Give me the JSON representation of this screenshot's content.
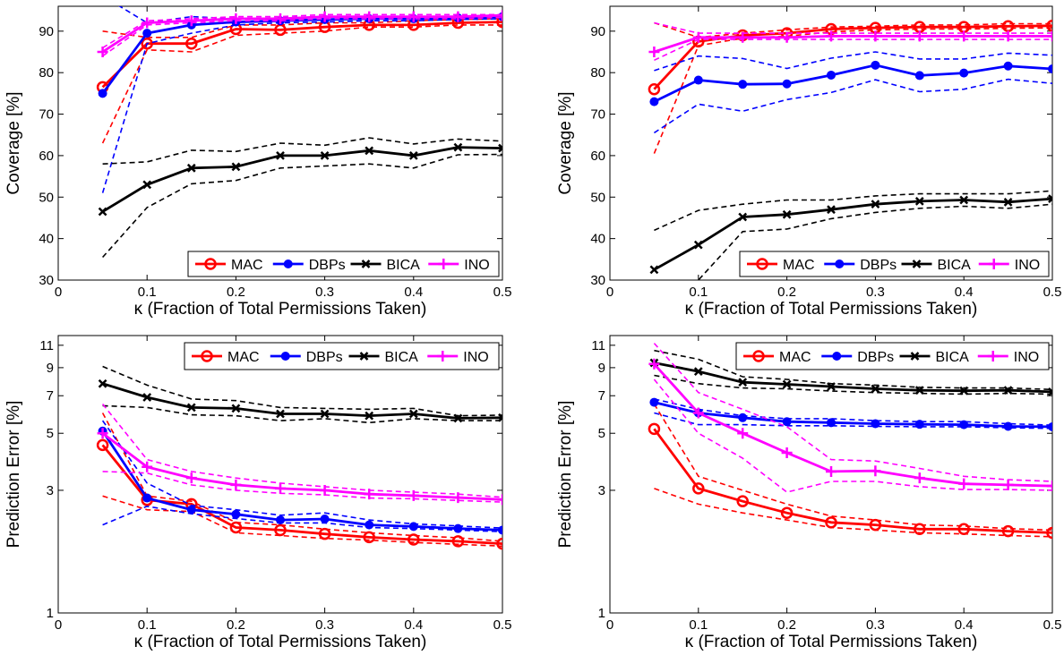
{
  "colors": {
    "MAC": "#ff0000",
    "DBPs": "#0000ff",
    "BICA": "#000000",
    "INO": "#ff00ff"
  },
  "legend_labels": [
    "MAC",
    "DBPs",
    "BICA",
    "INO"
  ],
  "chart_data": [
    {
      "type": "line",
      "xlabel": "κ (Fraction of Total Permissions Taken)",
      "ylabel": "Coverage [%]",
      "xlim": [
        0,
        0.5
      ],
      "ylim": [
        30,
        96
      ],
      "yscale": "linear",
      "xticks": [
        0,
        0.1,
        0.2,
        0.3,
        0.4,
        0.5
      ],
      "xtick_labels": [
        "0",
        "0.1",
        "0.2",
        "0.3",
        "0.4",
        "0.5"
      ],
      "yticks": [
        30,
        40,
        50,
        60,
        70,
        80,
        90
      ],
      "ytick_labels": [
        "30",
        "40",
        "50",
        "60",
        "70",
        "80",
        "90"
      ],
      "legend": "bottom-right",
      "x": [
        0.05,
        0.1,
        0.15,
        0.2,
        0.25,
        0.3,
        0.35,
        0.4,
        0.45,
        0.5
      ],
      "series": [
        {
          "name": "MAC",
          "marker": "circle",
          "values": [
            76.5,
            87,
            87,
            90.5,
            90.3,
            91,
            91.5,
            91.5,
            92,
            92.2
          ],
          "upper": [
            90,
            88.5,
            88.5,
            91.5,
            91.5,
            92,
            92,
            92.5,
            92.8,
            93
          ],
          "lower": [
            63,
            85.5,
            85,
            89,
            89.5,
            90,
            91,
            91,
            91.5,
            91.5
          ]
        },
        {
          "name": "DBPs",
          "marker": "dot",
          "values": [
            75,
            89.5,
            91.5,
            92.2,
            92.5,
            92.8,
            93,
            93,
            93.2,
            93.5
          ],
          "upper": [
            98.5,
            92,
            93.5,
            93,
            93.2,
            93.5,
            93.5,
            93.5,
            93.5,
            94
          ],
          "lower": [
            51,
            87,
            89.5,
            91.5,
            92,
            92.2,
            92.5,
            92.5,
            92.8,
            93
          ]
        },
        {
          "name": "BICA",
          "marker": "x",
          "values": [
            46.5,
            53,
            57,
            57.3,
            60,
            60,
            61.2,
            60,
            62,
            61.8
          ],
          "upper": [
            58,
            58.5,
            61.3,
            61,
            63,
            62.5,
            64.3,
            62.8,
            64,
            63.5
          ],
          "lower": [
            35.5,
            47.5,
            53.2,
            54,
            57,
            57.5,
            58,
            57,
            60.2,
            60.3
          ]
        },
        {
          "name": "INO",
          "marker": "plus",
          "values": [
            85,
            92,
            92.5,
            93,
            93,
            93.5,
            93.5,
            93.5,
            93.5,
            93.8
          ],
          "upper": [
            86,
            92.5,
            93,
            93.5,
            93.5,
            94,
            94,
            94,
            94,
            94
          ],
          "lower": [
            84,
            91.5,
            92,
            92.5,
            92.5,
            93,
            93,
            93,
            93,
            93.3
          ]
        }
      ]
    },
    {
      "type": "line",
      "xlabel": "κ (Fraction of Total Permissions Taken)",
      "ylabel": "Coverage [%]",
      "xlim": [
        0,
        0.5
      ],
      "ylim": [
        30,
        96
      ],
      "yscale": "linear",
      "xticks": [
        0,
        0.1,
        0.2,
        0.3,
        0.4,
        0.5
      ],
      "xtick_labels": [
        "0",
        "0.1",
        "0.2",
        "0.3",
        "0.4",
        "0.5"
      ],
      "yticks": [
        30,
        40,
        50,
        60,
        70,
        80,
        90
      ],
      "ytick_labels": [
        "30",
        "40",
        "50",
        "60",
        "70",
        "80",
        "90"
      ],
      "legend": "bottom-right",
      "x": [
        0.05,
        0.1,
        0.15,
        0.2,
        0.25,
        0.3,
        0.35,
        0.4,
        0.45,
        0.5
      ],
      "series": [
        {
          "name": "MAC",
          "marker": "circle",
          "values": [
            76,
            87.5,
            89,
            89.5,
            90.5,
            90.8,
            91,
            91,
            91.2,
            91.3
          ],
          "upper": [
            92,
            88.5,
            89.5,
            90.3,
            91,
            91.2,
            91.5,
            91.5,
            91.8,
            91.8
          ],
          "lower": [
            60.5,
            86.5,
            88.3,
            88.8,
            89.8,
            90.3,
            90.5,
            90.5,
            90.7,
            90.8
          ]
        },
        {
          "name": "DBPs",
          "marker": "dot",
          "values": [
            73,
            78.2,
            77.2,
            77.3,
            79.4,
            81.8,
            79.3,
            79.9,
            81.6,
            80.9
          ],
          "upper": [
            80.5,
            84,
            83.4,
            81,
            83.5,
            85,
            83.3,
            83.3,
            84.7,
            84.2
          ],
          "lower": [
            65.5,
            72.4,
            70.7,
            73.5,
            75.2,
            78.3,
            75.4,
            76,
            78.4,
            77.4
          ]
        },
        {
          "name": "BICA",
          "marker": "x",
          "values": [
            32.5,
            38.5,
            45.2,
            45.8,
            47,
            48.3,
            49,
            49.3,
            48.8,
            49.6
          ],
          "upper": [
            42,
            46.8,
            48.3,
            49.3,
            49.3,
            50.3,
            50.8,
            50.8,
            50.8,
            51.5
          ],
          "lower": [
            23,
            30,
            41.7,
            42.3,
            44.8,
            46.3,
            47.3,
            47.8,
            47.3,
            48.3
          ]
        },
        {
          "name": "INO",
          "marker": "plus",
          "values": [
            85,
            88.5,
            88.5,
            88.5,
            88.8,
            88.8,
            88.8,
            88.8,
            88.8,
            88.8
          ],
          "upper": [
            92,
            89.5,
            89.5,
            89.5,
            89.5,
            89.5,
            89.5,
            89.5,
            89.5,
            89.5
          ],
          "lower": [
            83,
            88,
            88,
            88,
            88,
            88,
            88,
            88,
            88,
            88
          ]
        }
      ]
    },
    {
      "type": "line",
      "xlabel": "κ (Fraction of Total Permissions Taken)",
      "ylabel": "Prediction Error [%]",
      "xlim": [
        0,
        0.5
      ],
      "ylim": [
        1,
        12
      ],
      "yscale": "log",
      "xticks": [
        0,
        0.1,
        0.2,
        0.3,
        0.4,
        0.5
      ],
      "xtick_labels": [
        "0",
        "0.1",
        "0.2",
        "0.3",
        "0.4",
        "0.5"
      ],
      "yticks": [
        1,
        3,
        5,
        7,
        9,
        11
      ],
      "ytick_labels": [
        "1",
        "3",
        "5",
        "7",
        "9",
        "11"
      ],
      "legend": "top-right",
      "x": [
        0.05,
        0.1,
        0.15,
        0.2,
        0.25,
        0.3,
        0.35,
        0.4,
        0.45,
        0.5
      ],
      "series": [
        {
          "name": "MAC",
          "marker": "circle",
          "values": [
            4.5,
            2.75,
            2.65,
            2.15,
            2.1,
            2.03,
            1.97,
            1.93,
            1.9,
            1.86
          ],
          "upper": [
            6,
            2.85,
            2.72,
            2.25,
            2.2,
            2.12,
            2.05,
            2,
            1.96,
            1.9
          ],
          "lower": [
            2.85,
            2.52,
            2.48,
            2.05,
            2,
            1.95,
            1.92,
            1.88,
            1.85,
            1.82
          ]
        },
        {
          "name": "DBPs",
          "marker": "dot",
          "values": [
            5.1,
            2.8,
            2.52,
            2.42,
            2.3,
            2.32,
            2.2,
            2.17,
            2.13,
            2.1
          ],
          "upper": [
            5.6,
            3.2,
            2.62,
            2.52,
            2.4,
            2.45,
            2.3,
            2.22,
            2.18,
            2.14
          ],
          "lower": [
            2.2,
            2.6,
            2.43,
            2.33,
            2.24,
            2.24,
            2.15,
            2.13,
            2.1,
            2.07
          ]
        },
        {
          "name": "BICA",
          "marker": "x",
          "values": [
            7.8,
            6.9,
            6.3,
            6.25,
            5.95,
            5.95,
            5.85,
            5.95,
            5.72,
            5.75
          ],
          "upper": [
            9.1,
            7.7,
            6.8,
            6.7,
            6.3,
            6.25,
            6.2,
            6.25,
            5.85,
            5.88
          ],
          "lower": [
            6.4,
            6.3,
            5.9,
            5.85,
            5.6,
            5.7,
            5.5,
            5.7,
            5.6,
            5.6
          ]
        },
        {
          "name": "INO",
          "marker": "plus",
          "values": [
            5,
            3.7,
            3.35,
            3.15,
            3.05,
            3,
            2.9,
            2.86,
            2.81,
            2.76
          ],
          "upper": [
            6.5,
            3.95,
            3.55,
            3.35,
            3.2,
            3.1,
            3,
            2.95,
            2.9,
            2.82
          ],
          "lower": [
            3.55,
            3.5,
            3.15,
            3,
            2.92,
            2.88,
            2.8,
            2.78,
            2.74,
            2.7
          ]
        }
      ]
    },
    {
      "type": "line",
      "xlabel": "κ (Fraction of Total Permissions Taken)",
      "ylabel": "Prediction Error [%]",
      "xlim": [
        0,
        0.5
      ],
      "ylim": [
        1,
        12
      ],
      "yscale": "log",
      "xticks": [
        0,
        0.1,
        0.2,
        0.3,
        0.4,
        0.5
      ],
      "xtick_labels": [
        "0",
        "0.1",
        "0.2",
        "0.3",
        "0.4",
        "0.5"
      ],
      "yticks": [
        1,
        3,
        5,
        7,
        9,
        11
      ],
      "ytick_labels": [
        "1",
        "3",
        "5",
        "7",
        "9",
        "11"
      ],
      "legend": "top-right",
      "x": [
        0.05,
        0.1,
        0.15,
        0.2,
        0.25,
        0.3,
        0.35,
        0.4,
        0.45,
        0.5
      ],
      "series": [
        {
          "name": "MAC",
          "marker": "circle",
          "values": [
            5.2,
            3.05,
            2.72,
            2.45,
            2.25,
            2.2,
            2.12,
            2.12,
            2.08,
            2.05
          ],
          "upper": [
            6.5,
            3.4,
            3,
            2.65,
            2.38,
            2.3,
            2.2,
            2.18,
            2.13,
            2.1
          ],
          "lower": [
            3.05,
            2.65,
            2.45,
            2.3,
            2.15,
            2.1,
            2.05,
            2.03,
            2.0,
            1.98
          ]
        },
        {
          "name": "DBPs",
          "marker": "dot",
          "values": [
            6.6,
            6,
            5.75,
            5.55,
            5.5,
            5.45,
            5.42,
            5.4,
            5.32,
            5.3
          ],
          "upper": [
            6.8,
            6.2,
            5.85,
            5.7,
            5.7,
            5.6,
            5.55,
            5.55,
            5.45,
            5.38
          ],
          "lower": [
            6,
            5.4,
            5.4,
            5.35,
            5.35,
            5.32,
            5.3,
            5.3,
            5.25,
            5.22
          ]
        },
        {
          "name": "BICA",
          "marker": "x",
          "values": [
            9.4,
            8.7,
            7.9,
            7.75,
            7.6,
            7.45,
            7.35,
            7.32,
            7.35,
            7.25
          ],
          "upper": [
            10.5,
            9.7,
            8.3,
            8.1,
            7.8,
            7.7,
            7.55,
            7.5,
            7.5,
            7.4
          ],
          "lower": [
            8.4,
            7.8,
            7.5,
            7.45,
            7.3,
            7.2,
            7.15,
            7.1,
            7.15,
            7.1
          ]
        },
        {
          "name": "INO",
          "marker": "plus",
          "values": [
            9.3,
            6,
            5,
            4.2,
            3.55,
            3.57,
            3.35,
            3.18,
            3.15,
            3.12
          ],
          "upper": [
            11.2,
            7.2,
            6.2,
            5.3,
            3.95,
            3.9,
            3.65,
            3.4,
            3.3,
            3.25
          ],
          "lower": [
            8.1,
            5,
            4,
            2.95,
            3.25,
            3.25,
            3.1,
            3.02,
            3.02,
            3.0
          ]
        }
      ]
    }
  ]
}
